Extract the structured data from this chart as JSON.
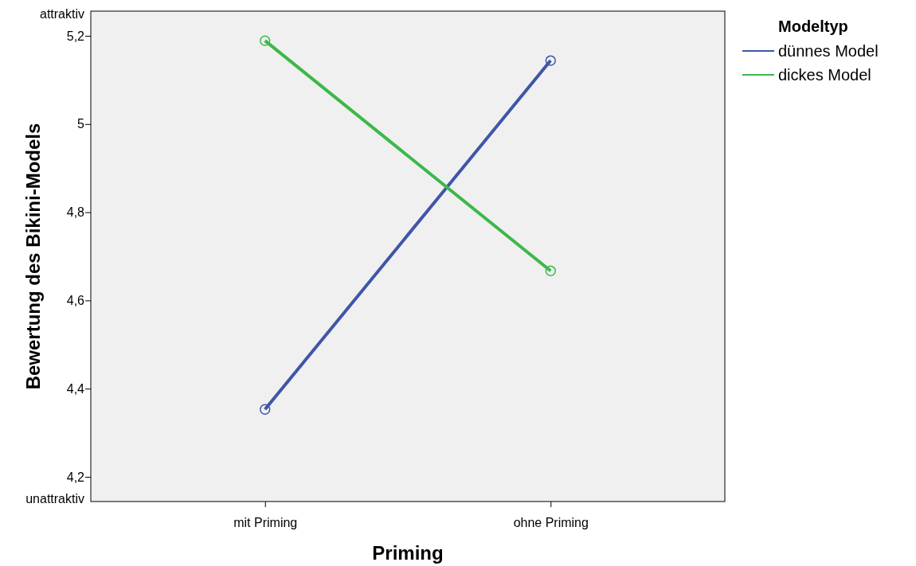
{
  "chart_data": {
    "type": "line",
    "xlabel": "Priming",
    "ylabel": "Bewertung des Bikini-Models",
    "legend_title": "Modeltyp",
    "categories": [
      "mit Priming",
      "ohne Priming"
    ],
    "series": [
      {
        "name": "dünnes Model",
        "color": "#3f55a8",
        "values": [
          4.353,
          5.144
        ]
      },
      {
        "name": "dickes Model",
        "color": "#3cb84a",
        "values": [
          5.189,
          4.667
        ]
      }
    ],
    "ylim": [
      4.144,
      5.256
    ],
    "yticks": [
      {
        "value": 4.144,
        "label": "unattraktiv"
      },
      {
        "value": 4.2,
        "label": "4,2"
      },
      {
        "value": 4.4,
        "label": "4,4"
      },
      {
        "value": 4.6,
        "label": "4,6"
      },
      {
        "value": 4.8,
        "label": "4,8"
      },
      5,
      {
        "value": 5.2,
        "label": "5,2"
      },
      {
        "value": 5.256,
        "label": "attraktiv"
      }
    ],
    "grid": false,
    "legend": "top right",
    "marker": "circle",
    "line_style": "solid"
  }
}
